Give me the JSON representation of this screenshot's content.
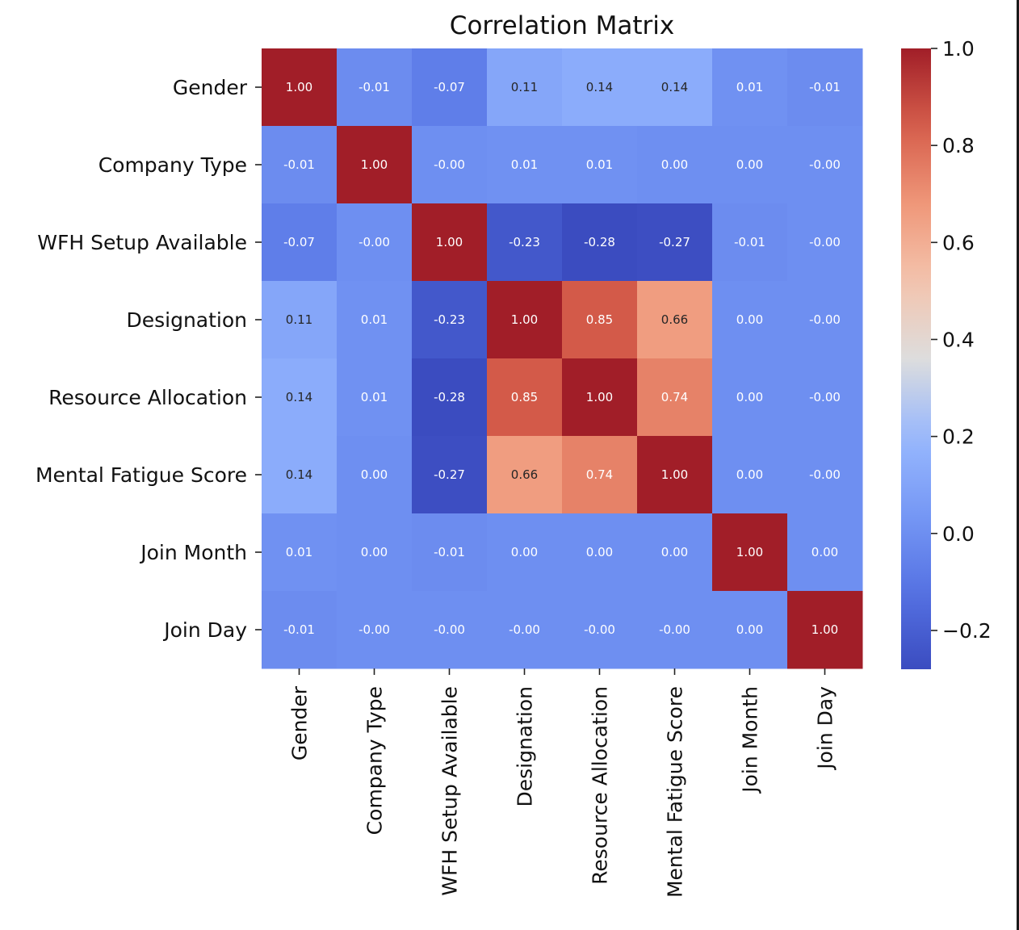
{
  "chart_data": {
    "type": "heatmap",
    "title": "Correlation Matrix",
    "colormap": "coolwarm",
    "row_labels": [
      "Gender",
      "Company Type",
      "WFH Setup Available",
      "Designation",
      "Resource Allocation",
      "Mental Fatigue Score",
      "Join Month",
      "Join Day"
    ],
    "col_labels": [
      "Gender",
      "Company Type",
      "WFH Setup Available",
      "Designation",
      "Resource Allocation",
      "Mental Fatigue Score",
      "Join Month",
      "Join Day"
    ],
    "values": [
      [
        1.0,
        -0.01,
        -0.07,
        0.11,
        0.14,
        0.14,
        0.01,
        -0.01
      ],
      [
        -0.01,
        1.0,
        -0.0,
        0.01,
        0.01,
        0.0,
        0.0,
        -0.0
      ],
      [
        -0.07,
        -0.0,
        1.0,
        -0.23,
        -0.28,
        -0.27,
        -0.01,
        -0.0
      ],
      [
        0.11,
        0.01,
        -0.23,
        1.0,
        0.85,
        0.66,
        0.0,
        -0.0
      ],
      [
        0.14,
        0.01,
        -0.28,
        0.85,
        1.0,
        0.74,
        0.0,
        -0.0
      ],
      [
        0.14,
        0.0,
        -0.27,
        0.66,
        0.74,
        1.0,
        0.0,
        -0.0
      ],
      [
        0.01,
        0.0,
        -0.01,
        0.0,
        0.0,
        0.0,
        1.0,
        0.0
      ],
      [
        -0.01,
        -0.0,
        -0.0,
        -0.0,
        -0.0,
        -0.0,
        0.0,
        1.0
      ]
    ],
    "annotations": [
      [
        "1.00",
        "-0.01",
        "-0.07",
        "0.11",
        "0.14",
        "0.14",
        "0.01",
        "-0.01"
      ],
      [
        "-0.01",
        "1.00",
        "-0.00",
        "0.01",
        "0.01",
        "0.00",
        "0.00",
        "-0.00"
      ],
      [
        "-0.07",
        "-0.00",
        "1.00",
        "-0.23",
        "-0.28",
        "-0.27",
        "-0.01",
        "-0.00"
      ],
      [
        "0.11",
        "0.01",
        "-0.23",
        "1.00",
        "0.85",
        "0.66",
        "0.00",
        "-0.00"
      ],
      [
        "0.14",
        "0.01",
        "-0.28",
        "0.85",
        "1.00",
        "0.74",
        "0.00",
        "-0.00"
      ],
      [
        "0.14",
        "0.00",
        "-0.27",
        "0.66",
        "0.74",
        "1.00",
        "0.00",
        "-0.00"
      ],
      [
        "0.01",
        "0.00",
        "-0.01",
        "0.00",
        "0.00",
        "0.00",
        "1.00",
        "0.00"
      ],
      [
        "-0.01",
        "-0.00",
        "-0.00",
        "-0.00",
        "-0.00",
        "-0.00",
        "0.00",
        "1.00"
      ]
    ],
    "vmin": -0.28,
    "vmax": 1.0,
    "colorbar": {
      "ticks": [
        -0.2,
        0.0,
        0.2,
        0.4,
        0.6,
        0.8,
        1.0
      ],
      "tick_labels": [
        "−0.2",
        "0.0",
        "0.2",
        "0.4",
        "0.6",
        "0.8",
        "1.0"
      ]
    },
    "grid": false,
    "legend": "colorbar-right"
  }
}
